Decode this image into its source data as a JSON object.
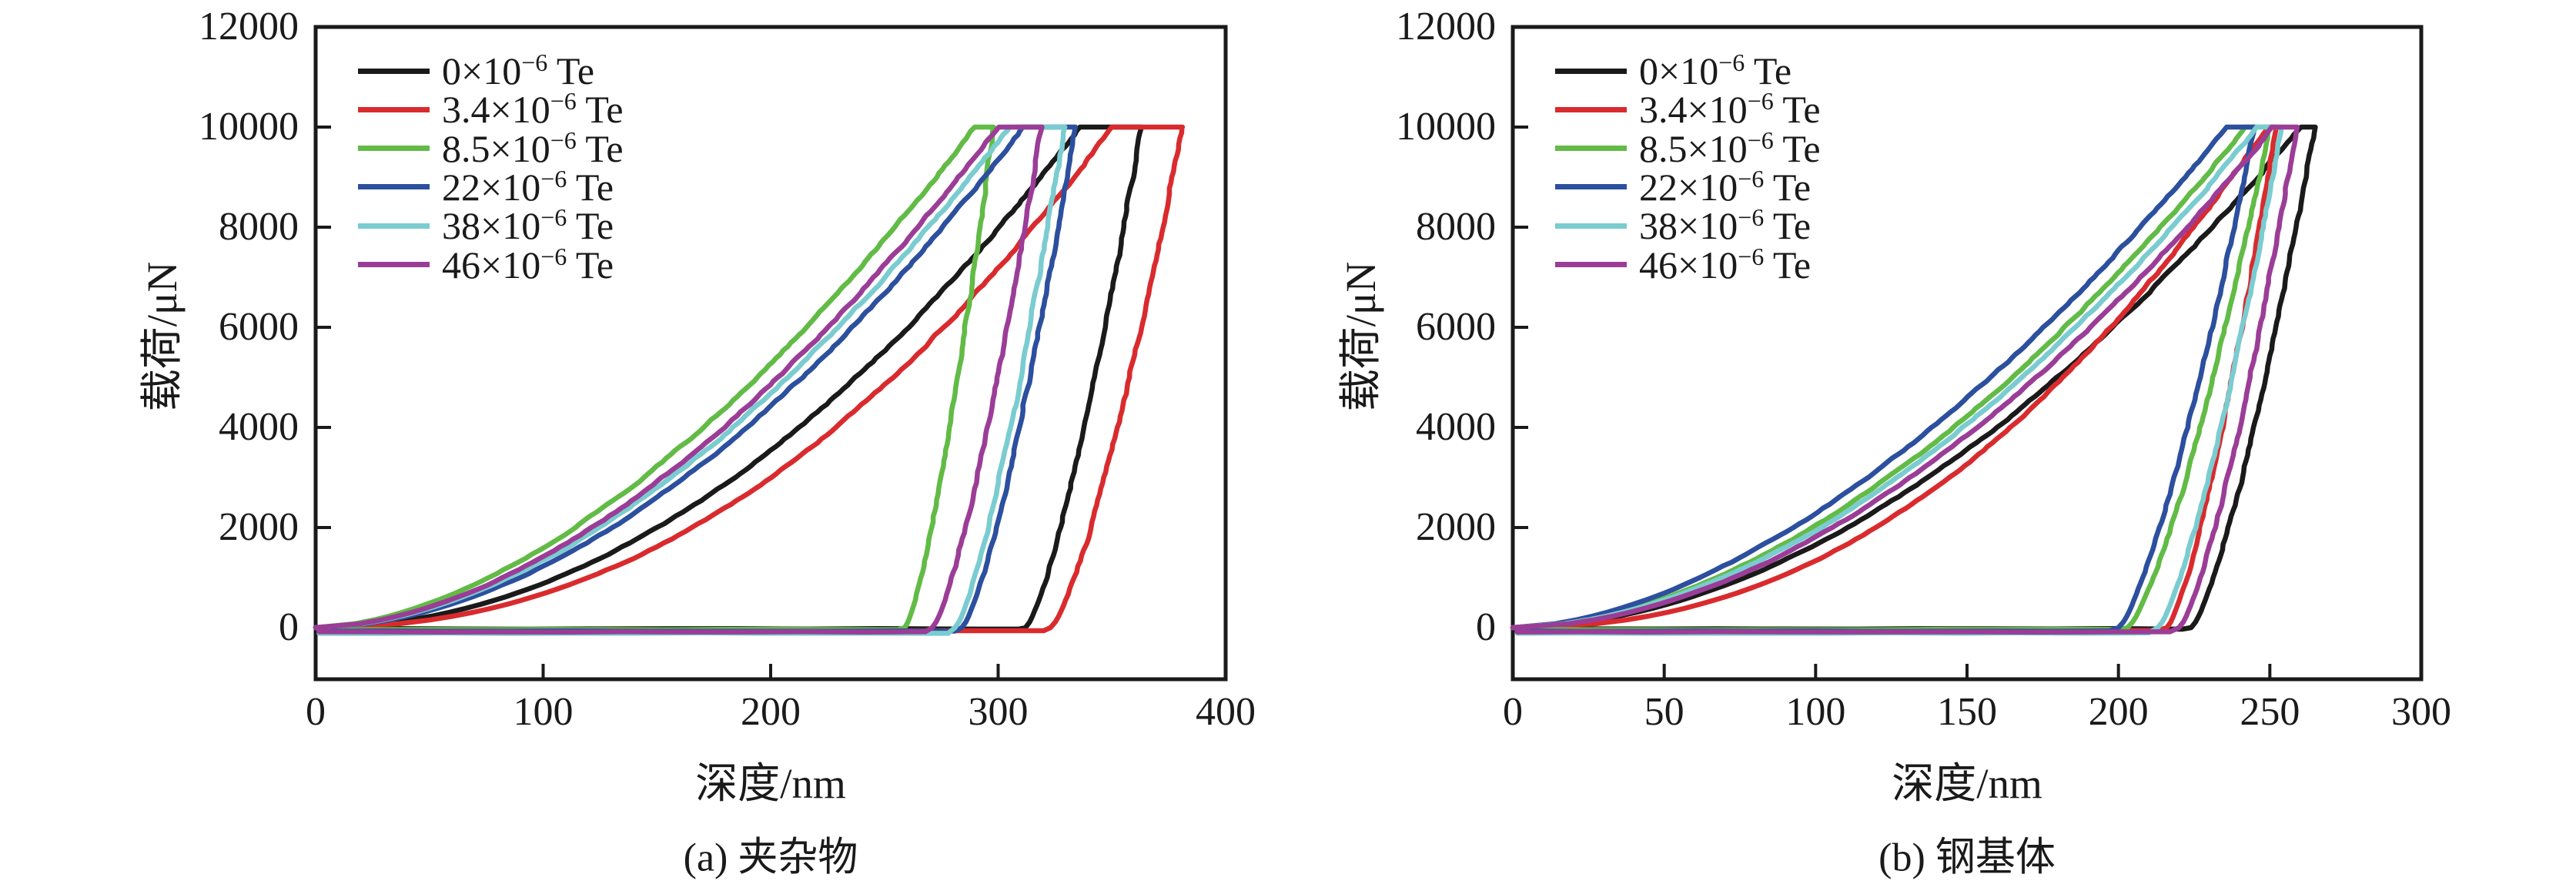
{
  "figure": {
    "background": "#ffffff",
    "axis_color": "#1a1a1a",
    "peak_load_uN": 10000
  },
  "chart_data": [
    {
      "type": "line",
      "panel": "a",
      "caption": "(a) 夹杂物",
      "xlabel": "深度/nm",
      "ylabel": "载荷/μN",
      "xlim": [
        0,
        400
      ],
      "xticks": [
        0,
        100,
        200,
        300,
        400
      ],
      "ylim": [
        -1000,
        12000
      ],
      "yticks": [
        0,
        2000,
        4000,
        6000,
        8000,
        10000,
        12000
      ],
      "grid": false,
      "legend_position": "top-left",
      "series": [
        {
          "name": "0×10⁻⁶ Te",
          "label_main": "0×10",
          "label_sup": "−6",
          "label_tail": " Te",
          "color": "#1a1a1a",
          "load_end_nm": 336,
          "hold_end_nm": 363,
          "unload_end_nm": 312,
          "load_exponent": 2.0
        },
        {
          "name": "3.4×10⁻⁶ Te",
          "label_main": "3.4×10",
          "label_sup": "−6",
          "label_tail": " Te",
          "color": "#d92b2e",
          "load_end_nm": 350,
          "hold_end_nm": 381,
          "unload_end_nm": 323,
          "load_exponent": 2.15
        },
        {
          "name": "8.5×10⁻⁶ Te",
          "label_main": "8.5×10",
          "label_sup": "−6",
          "label_tail": " Te",
          "color": "#62bb46",
          "load_end_nm": 290,
          "hold_end_nm": 298,
          "unload_end_nm": 259,
          "load_exponent": 1.72
        },
        {
          "name": "22×10⁻⁶ Te",
          "label_main": "22×10",
          "label_sup": "−6",
          "label_tail": " Te",
          "color": "#2c4f9e",
          "load_end_nm": 311,
          "hold_end_nm": 334,
          "unload_end_nm": 284,
          "load_exponent": 1.85
        },
        {
          "name": "38×10⁻⁶ Te",
          "label_main": "38×10",
          "label_sup": "−6",
          "label_tail": " Te",
          "color": "#7accd0",
          "load_end_nm": 305,
          "hold_end_nm": 329,
          "unload_end_nm": 281,
          "load_exponent": 1.8
        },
        {
          "name": "46×10⁻⁶ Te",
          "label_main": "46×10",
          "label_sup": "−6",
          "label_tail": " Te",
          "color": "#9b3d97",
          "load_end_nm": 300,
          "hold_end_nm": 319,
          "unload_end_nm": 271,
          "load_exponent": 1.78
        }
      ]
    },
    {
      "type": "line",
      "panel": "b",
      "caption": "(b) 钢基体",
      "xlabel": "深度/nm",
      "ylabel": "载荷/μN",
      "xlim": [
        0,
        300
      ],
      "xticks": [
        0,
        50,
        100,
        150,
        200,
        250,
        300
      ],
      "ylim": [
        -1000,
        12000
      ],
      "yticks": [
        0,
        2000,
        4000,
        6000,
        8000,
        10000,
        12000
      ],
      "grid": false,
      "legend_position": "top-left",
      "series": [
        {
          "name": "0×10⁻⁶ Te",
          "label_main": "0×10",
          "label_sup": "−6",
          "label_tail": " Te",
          "color": "#1a1a1a",
          "load_end_nm": 260,
          "hold_end_nm": 265,
          "unload_end_nm": 224,
          "load_exponent": 1.88
        },
        {
          "name": "3.4×10⁻⁶ Te",
          "label_main": "3.4×10",
          "label_sup": "−6",
          "label_tail": " Te",
          "color": "#d92b2e",
          "load_end_nm": 249,
          "hold_end_nm": 252,
          "unload_end_nm": 216,
          "load_exponent": 2.2
        },
        {
          "name": "8.5×10⁻⁶ Te",
          "label_main": "8.5×10",
          "label_sup": "−6",
          "label_tail": " Te",
          "color": "#62bb46",
          "load_end_nm": 242,
          "hold_end_nm": 250,
          "unload_end_nm": 203,
          "load_exponent": 1.8
        },
        {
          "name": "22×10⁻⁶ Te",
          "label_main": "22×10",
          "label_sup": "−6",
          "label_tail": " Te",
          "color": "#2c4f9e",
          "load_end_nm": 236,
          "hold_end_nm": 245,
          "unload_end_nm": 200,
          "load_exponent": 1.72
        },
        {
          "name": "38×10⁻⁶ Te",
          "label_main": "38×10",
          "label_sup": "−6",
          "label_tail": " Te",
          "color": "#7accd0",
          "load_end_nm": 246,
          "hold_end_nm": 254,
          "unload_end_nm": 213,
          "load_exponent": 1.82
        },
        {
          "name": "46×10⁻⁶ Te",
          "label_main": "46×10",
          "label_sup": "−6",
          "label_tail": " Te",
          "color": "#9b3d97",
          "load_end_nm": 251,
          "hold_end_nm": 259,
          "unload_end_nm": 220,
          "load_exponent": 1.86
        }
      ]
    }
  ]
}
